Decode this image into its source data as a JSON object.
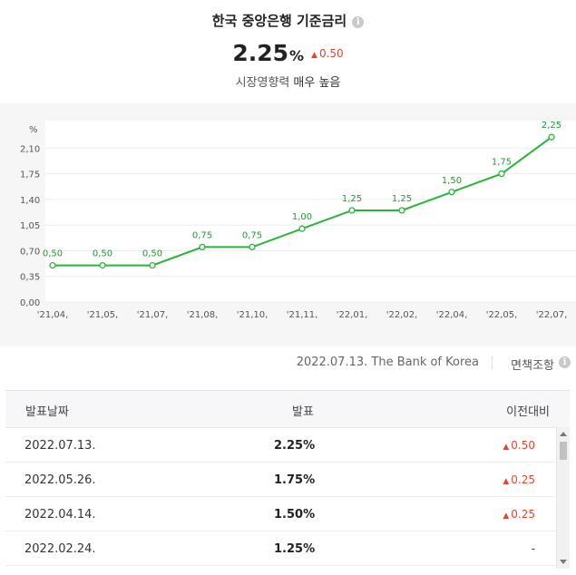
{
  "header": {
    "title": "한국 중앙은행 기준금리",
    "info_glyph": "i",
    "rate_value": "2.25",
    "rate_unit": "%",
    "rate_change": "0.50",
    "impact_label": "시장영향력",
    "impact_value": "매우 높음"
  },
  "colors": {
    "line": "#27b53a",
    "label": "#1f9a2f",
    "up": "#e8452f",
    "chart_bg": "#f6f6f6",
    "grid": "#ececec"
  },
  "chart_data": {
    "type": "line",
    "ylabel": "%",
    "ylim": [
      0,
      2.45
    ],
    "yticks": [
      "0,00",
      "0,35",
      "0,70",
      "1,05",
      "1,40",
      "1,75",
      "2,10"
    ],
    "ytick_values": [
      0,
      0.35,
      0.7,
      1.05,
      1.4,
      1.75,
      2.1
    ],
    "categories": [
      "'21,04,",
      "'21,05,",
      "'21,07,",
      "'21,08,",
      "'21,10,",
      "'21,11,",
      "'22,01,",
      "'22,02,",
      "'22,04,",
      "'22,05,",
      "'22,07,"
    ],
    "values": [
      0.5,
      0.5,
      0.5,
      0.75,
      0.75,
      1.0,
      1.25,
      1.25,
      1.5,
      1.75,
      2.25
    ],
    "value_labels": [
      "0,50",
      "0,50",
      "0,50",
      "0,75",
      "0,75",
      "1,00",
      "1,25",
      "1,25",
      "1,50",
      "1,75",
      "2,25"
    ],
    "grid": "horizontal"
  },
  "source": {
    "text": "2022.07.13. The Bank of Korea",
    "disclaimer": "면책조항"
  },
  "table": {
    "headers": {
      "date": "발표날짜",
      "value": "발표",
      "diff": "이전대비"
    },
    "rows": [
      {
        "date": "2022.07.13.",
        "value": "2.25%",
        "diff": "0.50",
        "up": true
      },
      {
        "date": "2022.05.26.",
        "value": "1.75%",
        "diff": "0.25",
        "up": true
      },
      {
        "date": "2022.04.14.",
        "value": "1.50%",
        "diff": "0.25",
        "up": true
      },
      {
        "date": "2022.02.24.",
        "value": "1.25%",
        "diff": "-",
        "up": false
      }
    ]
  }
}
